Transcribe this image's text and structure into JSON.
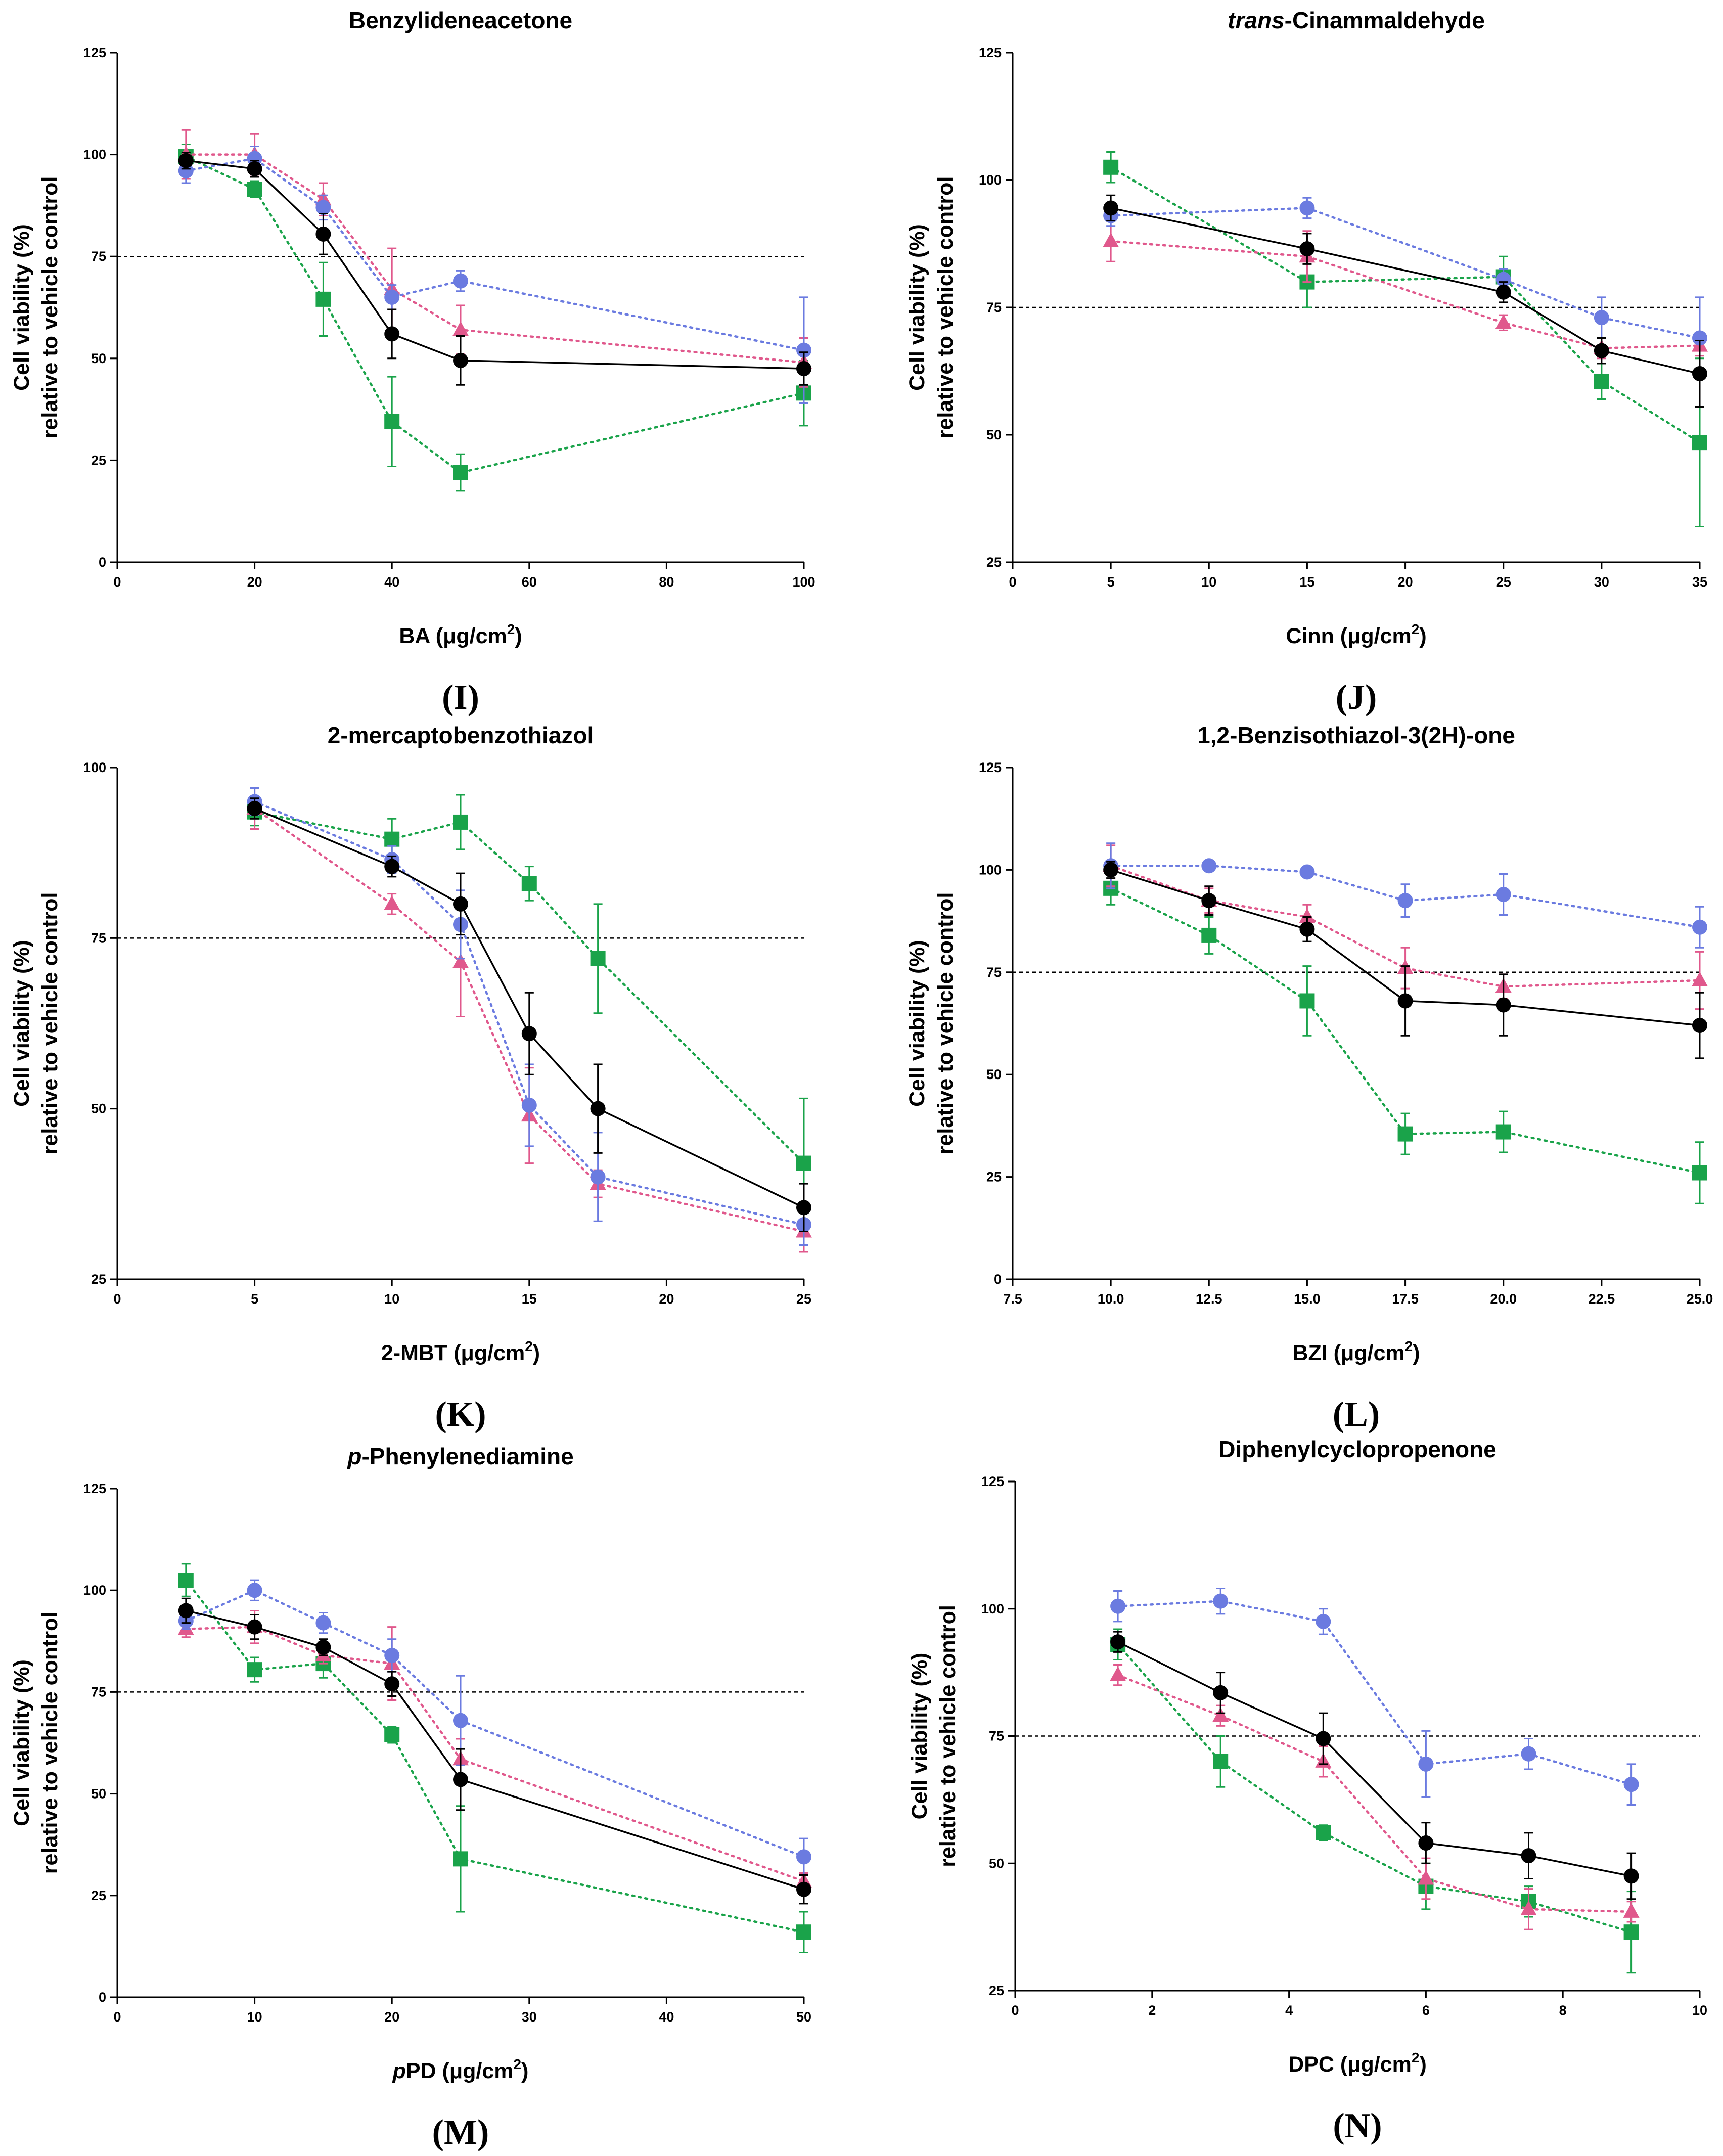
{
  "figure": {
    "series_names": [
      "black",
      "blue",
      "pink",
      "green"
    ],
    "colors": {
      "black": "#000000",
      "blue": "#6b7be0",
      "pink": "#e0588c",
      "green": "#1aa34a",
      "threshold": "#000000"
    },
    "markers": {
      "black": "circle",
      "blue": "circle",
      "pink": "triangle",
      "green": "square"
    }
  },
  "chart_data": [
    {
      "id": "I",
      "type": "line",
      "panel_label": "(I)",
      "title": "Benzylideneacetone",
      "title_italic": "",
      "title_rest": "Benzylideneacetone",
      "xlabel": "BA (μg/cm2)",
      "xlabel_italic": "",
      "xlabel_main": "BA (μg/cm",
      "xlabel_sup": "2",
      "xlabel_tail": ")",
      "ylabel_line1": "Cell viability (%)",
      "ylabel_line2": "relative to vehicle control",
      "xlim": [
        0,
        100
      ],
      "ylim": [
        0,
        125
      ],
      "xticks": [
        0,
        20,
        40,
        60,
        80,
        100
      ],
      "xtick_labels": [
        "0",
        "20",
        "40",
        "60",
        "80",
        "100"
      ],
      "yticks": [
        0,
        25,
        50,
        75,
        100,
        125
      ],
      "ytick_labels": [
        "0",
        "25",
        "50",
        "75",
        "100",
        "125"
      ],
      "threshold": 75,
      "x": [
        10,
        20,
        30,
        40,
        50,
        100
      ],
      "series": [
        {
          "name": "black",
          "values": [
            98.5,
            96.5,
            80.5,
            56,
            49.5,
            47.5
          ],
          "errors": [
            2,
            2,
            5,
            6,
            6,
            4
          ]
        },
        {
          "name": "blue",
          "values": [
            96,
            99,
            87,
            65,
            69,
            52
          ],
          "errors": [
            3,
            3,
            3,
            3,
            2.5,
            13
          ]
        },
        {
          "name": "pink",
          "values": [
            100,
            100,
            89,
            67,
            57,
            49
          ],
          "errors": [
            6,
            5,
            4,
            10,
            6,
            6
          ]
        },
        {
          "name": "green",
          "values": [
            99.5,
            91.5,
            64.5,
            34.5,
            22,
            41.5
          ],
          "errors": [
            3,
            2,
            9,
            11,
            4.5,
            8
          ]
        }
      ]
    },
    {
      "id": "J",
      "type": "line",
      "panel_label": "(J)",
      "title": "trans-Cinammaldehyde",
      "title_italic": "trans",
      "title_rest": "-Cinammaldehyde",
      "xlabel": "Cinn (μg/cm2)",
      "xlabel_italic": "",
      "xlabel_main": "Cinn (μg/cm",
      "xlabel_sup": "2",
      "xlabel_tail": ")",
      "ylabel_line1": "Cell viability (%)",
      "ylabel_line2": "relative to vehicle control",
      "xlim": [
        0,
        35
      ],
      "ylim": [
        25,
        125
      ],
      "xticks": [
        0,
        5,
        10,
        15,
        20,
        25,
        30,
        35
      ],
      "xtick_labels": [
        "0",
        "5",
        "10",
        "15",
        "20",
        "25",
        "30",
        "35"
      ],
      "yticks": [
        25,
        50,
        75,
        100,
        125
      ],
      "ytick_labels": [
        "25",
        "50",
        "75",
        "100",
        "125"
      ],
      "threshold": 75,
      "x": [
        5,
        15,
        25,
        30,
        35
      ],
      "series": [
        {
          "name": "black",
          "values": [
            94.5,
            86.5,
            78,
            66.5,
            62
          ],
          "errors": [
            2.5,
            3,
            2,
            2.5,
            6.5
          ]
        },
        {
          "name": "blue",
          "values": [
            93,
            94.5,
            80.5,
            73,
            69
          ],
          "errors": [
            2,
            2,
            2,
            4,
            8
          ]
        },
        {
          "name": "pink",
          "values": [
            88,
            85,
            72,
            67,
            67.5
          ],
          "errors": [
            4,
            5,
            1.5,
            2,
            2
          ]
        },
        {
          "name": "green",
          "values": [
            102.5,
            80,
            81,
            60.5,
            48.5
          ],
          "errors": [
            3,
            5,
            4,
            3.5,
            16.5
          ]
        }
      ]
    },
    {
      "id": "K",
      "type": "line",
      "panel_label": "(K)",
      "title": "2-mercaptobenzothiazol",
      "title_italic": "",
      "title_rest": "2-mercaptobenzothiazol",
      "xlabel": "2-MBT (μg/cm2)",
      "xlabel_italic": "",
      "xlabel_main": "2-MBT (μg/cm",
      "xlabel_sup": "2",
      "xlabel_tail": ")",
      "ylabel_line1": "Cell viability (%)",
      "ylabel_line2": "relative to vehicle control",
      "xlim": [
        0,
        25
      ],
      "ylim": [
        25,
        100
      ],
      "xticks": [
        0,
        5,
        10,
        15,
        20,
        25
      ],
      "xtick_labels": [
        "0",
        "5",
        "10",
        "15",
        "20",
        "25"
      ],
      "yticks": [
        25,
        50,
        75,
        100
      ],
      "ytick_labels": [
        "25",
        "50",
        "75",
        "100"
      ],
      "threshold": 75,
      "x": [
        5,
        10,
        12.5,
        15,
        17.5,
        25
      ],
      "series": [
        {
          "name": "black",
          "values": [
            94,
            85.5,
            80,
            61,
            50,
            35.5
          ],
          "errors": [
            1.5,
            1.5,
            4.5,
            6,
            6.5,
            3.5
          ]
        },
        {
          "name": "blue",
          "values": [
            95,
            86.5,
            77,
            50.5,
            40,
            33
          ],
          "errors": [
            2,
            2,
            5,
            6,
            6.5,
            3
          ]
        },
        {
          "name": "pink",
          "values": [
            94,
            80,
            71.5,
            49,
            39,
            32
          ],
          "errors": [
            3,
            1.5,
            8,
            7,
            2,
            3
          ]
        },
        {
          "name": "green",
          "values": [
            93.5,
            89.5,
            92,
            83,
            72,
            42
          ],
          "errors": [
            2,
            3,
            4,
            2.5,
            8,
            9.5
          ]
        }
      ]
    },
    {
      "id": "L",
      "type": "line",
      "panel_label": "(L)",
      "title": "1,2-Benzisothiazol-3(2H)-one",
      "title_italic": "",
      "title_rest": "1,2-Benzisothiazol-3(2H)-one",
      "xlabel": "BZI (μg/cm2)",
      "xlabel_italic": "",
      "xlabel_main": "BZI (μg/cm",
      "xlabel_sup": "2",
      "xlabel_tail": ")",
      "ylabel_line1": "Cell viability (%)",
      "ylabel_line2": "relative to vehicle control",
      "xlim": [
        7.5,
        25
      ],
      "ylim": [
        0,
        125
      ],
      "xticks": [
        7.5,
        10,
        12.5,
        15,
        17.5,
        20,
        22.5,
        25
      ],
      "xtick_labels": [
        "7.5",
        "10.0",
        "12.5",
        "15.0",
        "17.5",
        "20.0",
        "22.5",
        "25.0"
      ],
      "yticks": [
        0,
        25,
        50,
        75,
        100,
        125
      ],
      "ytick_labels": [
        "0",
        "25",
        "50",
        "75",
        "100",
        "125"
      ],
      "threshold": 75,
      "x": [
        10,
        12.5,
        15,
        17.5,
        20,
        25
      ],
      "series": [
        {
          "name": "black",
          "values": [
            100,
            92.5,
            85.5,
            68,
            67,
            62
          ],
          "errors": [
            2,
            3.5,
            3,
            8.5,
            7.5,
            8
          ]
        },
        {
          "name": "blue",
          "values": [
            101,
            101,
            99.5,
            92.5,
            94,
            86
          ],
          "errors": [
            5.5,
            1,
            1,
            4,
            5,
            5
          ]
        },
        {
          "name": "pink",
          "values": [
            101,
            92.5,
            88.5,
            76,
            71.5,
            73
          ],
          "errors": [
            5,
            3,
            3,
            5,
            3,
            7
          ]
        },
        {
          "name": "green",
          "values": [
            95.5,
            84,
            68,
            35.5,
            36,
            26
          ],
          "errors": [
            4,
            4.5,
            8.5,
            5,
            5,
            7.5
          ]
        }
      ]
    },
    {
      "id": "M",
      "type": "line",
      "panel_label": "(M)",
      "title": "p-Phenylenediamine",
      "title_italic": "p",
      "title_rest": "-Phenylenediamine",
      "xlabel": "pPD (μg/cm2)",
      "xlabel_italic": "p",
      "xlabel_main": "PD (μg/cm",
      "xlabel_sup": "2",
      "xlabel_tail": ")",
      "ylabel_line1": "Cell viability (%)",
      "ylabel_line2": "relative to vehicle control",
      "xlim": [
        0,
        50
      ],
      "ylim": [
        0,
        125
      ],
      "xticks": [
        0,
        10,
        20,
        30,
        40,
        50
      ],
      "xtick_labels": [
        "0",
        "10",
        "20",
        "30",
        "40",
        "50"
      ],
      "yticks": [
        0,
        25,
        50,
        75,
        100,
        125
      ],
      "ytick_labels": [
        "0",
        "25",
        "50",
        "75",
        "100",
        "125"
      ],
      "threshold": 75,
      "x": [
        5,
        10,
        15,
        20,
        25,
        50
      ],
      "series": [
        {
          "name": "black",
          "values": [
            95,
            91,
            86,
            77,
            53.5,
            26.5
          ],
          "errors": [
            3,
            3,
            2,
            3,
            7.5,
            3.5
          ]
        },
        {
          "name": "blue",
          "values": [
            92.5,
            100,
            92,
            84,
            68,
            34.5
          ],
          "errors": [
            2,
            2.5,
            2.5,
            4,
            11,
            4.5
          ]
        },
        {
          "name": "pink",
          "values": [
            90.5,
            91,
            84,
            82,
            58.5,
            28.5
          ],
          "errors": [
            2,
            4,
            2,
            9,
            5,
            2
          ]
        },
        {
          "name": "green",
          "values": [
            102.5,
            80.5,
            82,
            64.5,
            34,
            16
          ],
          "errors": [
            4,
            3,
            3.5,
            2,
            13,
            5
          ]
        }
      ]
    },
    {
      "id": "N",
      "type": "line",
      "panel_label": "(N)",
      "title": "Diphenylcyclopropenone",
      "title_italic": "",
      "title_rest": "Diphenylcyclopropenone",
      "xlabel": "DPC (μg/cm2)",
      "xlabel_italic": "",
      "xlabel_main": "DPC (μg/cm",
      "xlabel_sup": "2",
      "xlabel_tail": ")",
      "ylabel_line1": "Cell viability (%)",
      "ylabel_line2": "relative to vehicle control",
      "xlim": [
        0,
        10
      ],
      "ylim": [
        25,
        125
      ],
      "xticks": [
        0,
        2,
        4,
        6,
        8,
        10
      ],
      "xtick_labels": [
        "0",
        "2",
        "4",
        "6",
        "8",
        "10"
      ],
      "yticks": [
        25,
        50,
        75,
        100,
        125
      ],
      "ytick_labels": [
        "25",
        "50",
        "75",
        "100",
        "125"
      ],
      "threshold": 75,
      "x": [
        1.5,
        3,
        4.5,
        6,
        7.5,
        9
      ],
      "series": [
        {
          "name": "black",
          "values": [
            93.5,
            83.5,
            74.5,
            54,
            51.5,
            47.5
          ],
          "errors": [
            2,
            4,
            5,
            4,
            4.5,
            4.5
          ]
        },
        {
          "name": "blue",
          "values": [
            100.5,
            101.5,
            97.5,
            69.5,
            71.5,
            65.5
          ],
          "errors": [
            3,
            2.5,
            2.5,
            6.5,
            3,
            4
          ]
        },
        {
          "name": "pink",
          "values": [
            87,
            79,
            70,
            47,
            41,
            40.5
          ],
          "errors": [
            2,
            2,
            3,
            4,
            4,
            2
          ]
        },
        {
          "name": "green",
          "values": [
            93,
            70,
            56,
            45.5,
            42.5,
            36.5
          ],
          "errors": [
            3,
            5,
            1.5,
            4.5,
            3,
            8
          ]
        }
      ]
    }
  ]
}
